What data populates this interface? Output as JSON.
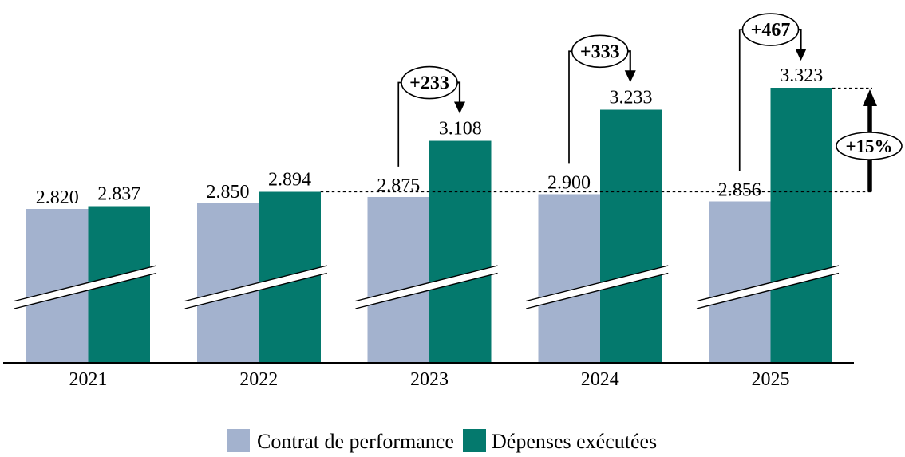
{
  "chart_data": {
    "type": "bar",
    "title": "",
    "categories": [
      "2021",
      "2022",
      "2023",
      "2024",
      "2025"
    ],
    "series": [
      {
        "name": "Contrat de performance",
        "color": "#A3B2CE",
        "values": [
          2820,
          2850,
          2875,
          2900,
          2856
        ],
        "labels": [
          "2.820",
          "2.850",
          "2.875",
          "2.900",
          "2.856"
        ]
      },
      {
        "name": "Dépenses exécutées",
        "color": "#04796D",
        "values": [
          2837,
          2894,
          3108,
          3233,
          3323
        ],
        "labels": [
          "2.837",
          "2.894",
          "3.108",
          "3.233",
          "3.323"
        ]
      }
    ],
    "annotations": {
      "deltas": [
        {
          "category": "2023",
          "label": "+233",
          "value": 233
        },
        {
          "category": "2024",
          "label": "+333",
          "value": 333
        },
        {
          "category": "2025",
          "label": "+467",
          "value": 467
        }
      ],
      "growth": {
        "label": "+15%"
      },
      "reference_lines": [
        {
          "style": "dashed",
          "at_value": 2894,
          "note": "level of 2022 executed spending, extended to the right"
        },
        {
          "style": "dashed",
          "at_value": 3323,
          "note": "level of 2025 executed spending, short segment at right"
        }
      ]
    },
    "axis_break": true,
    "grid": false,
    "legend_position": "bottom"
  },
  "legend": {
    "items": [
      {
        "label": "Contrat de performance",
        "color": "#A3B2CE"
      },
      {
        "label": "Dépenses exécutées",
        "color": "#04796D"
      }
    ]
  }
}
